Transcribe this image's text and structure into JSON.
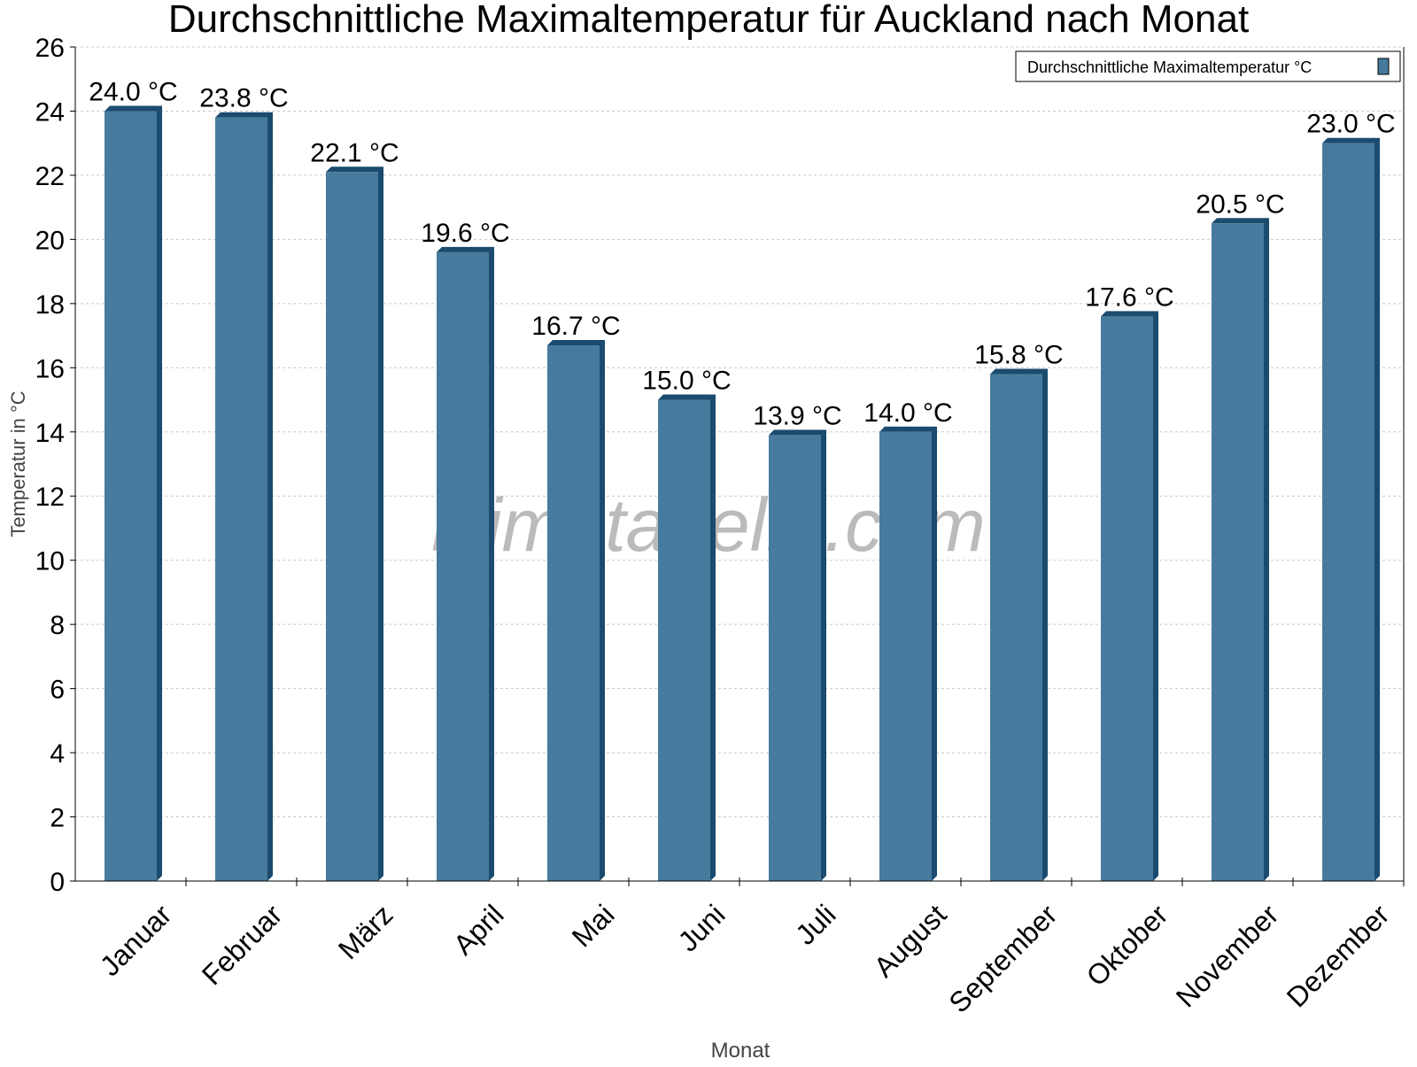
{
  "chart_data": {
    "type": "bar",
    "title": "Durchschnittliche Maximaltemperatur für Auckland nach Monat",
    "xlabel": "Monat",
    "ylabel": "Temperatur in °C",
    "categories": [
      "Januar",
      "Februar",
      "März",
      "April",
      "Mai",
      "Juni",
      "Juli",
      "August",
      "September",
      "Oktober",
      "November",
      "Dezember"
    ],
    "series": [
      {
        "name": "Durchschnittliche Maximaltemperatur °C",
        "values": [
          24.0,
          23.8,
          22.1,
          19.6,
          16.7,
          15.0,
          13.9,
          14.0,
          15.8,
          17.6,
          20.5,
          23.0
        ],
        "color": "#467b9d",
        "depth_color": "#1b4b6e"
      }
    ],
    "data_labels": [
      "24.0 °C",
      "23.8 °C",
      "22.1 °C",
      "19.6 °C",
      "16.7 °C",
      "15.0 °C",
      "13.9 °C",
      "14.0 °C",
      "15.8 °C",
      "17.6 °C",
      "20.5 °C",
      "23.0 °C"
    ],
    "ylim": [
      0,
      26
    ],
    "yticks": [
      "0",
      "2",
      "4",
      "6",
      "8",
      "10",
      "12",
      "14",
      "16",
      "18",
      "20",
      "22",
      "24",
      "26"
    ],
    "grid": true,
    "legend_position": "top-right",
    "watermark": "klimatabelle.com"
  }
}
